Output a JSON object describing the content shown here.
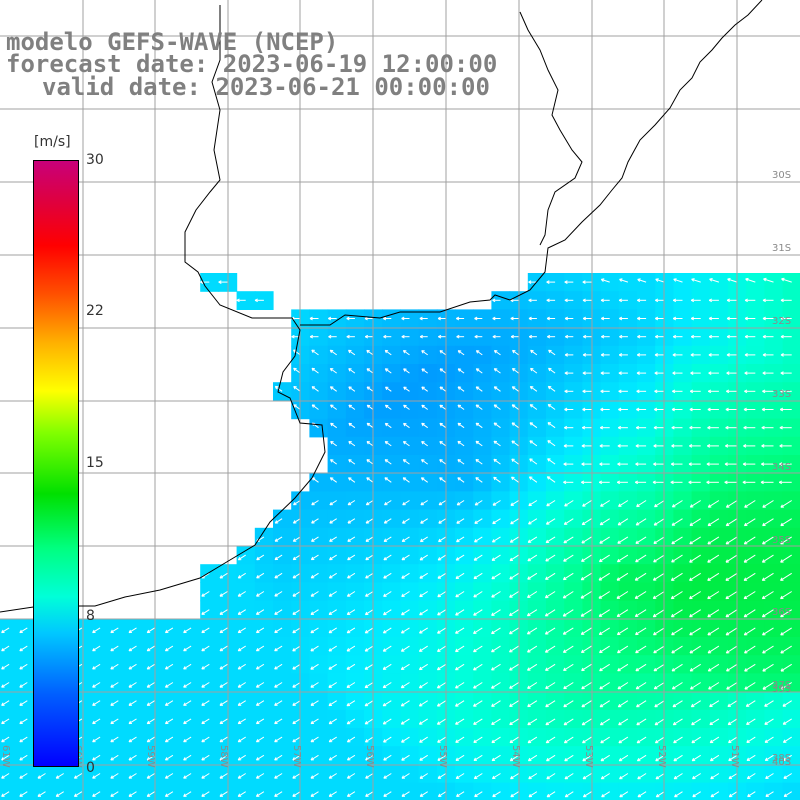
{
  "header": {
    "line1": "modelo GEFS-WAVE (NCEP)",
    "line2": "forecast date: 2023-06-19 12:00:00",
    "line3": "valid date: 2023-06-21 00:00:00"
  },
  "colorbar": {
    "unit": "[m/s]",
    "ticks": [
      "30",
      "22",
      "15",
      "8",
      "0"
    ],
    "colors": [
      "#0000ff",
      "#0060ff",
      "#00c8ff",
      "#00ffd8",
      "#00ff80",
      "#00e000",
      "#80ff00",
      "#ffff00",
      "#ffb000",
      "#ff5000",
      "#ff0000",
      "#e0003c",
      "#c8007a"
    ]
  },
  "map": {
    "lat_labels": [
      "30S",
      "31S",
      "32S",
      "33S",
      "34S",
      "35S",
      "36S",
      "37S",
      "38S",
      "39S",
      "40S"
    ],
    "lon_labels": [
      "61W",
      "60W",
      "59W",
      "58W",
      "57W",
      "56W",
      "55W",
      "54W",
      "53W",
      "52W",
      "51W"
    ],
    "land_color": "#ffffff",
    "grid_color": "#a0a0a0",
    "arrow_color": "#ffffff"
  }
}
